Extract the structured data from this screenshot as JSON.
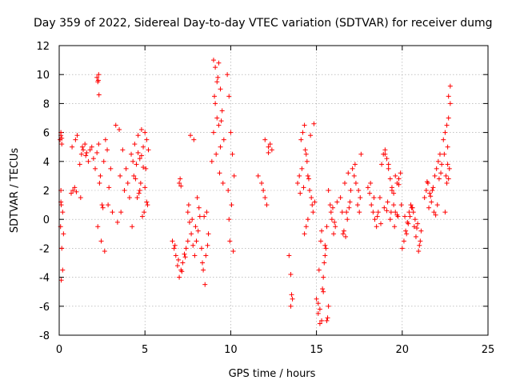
{
  "chart_data": {
    "type": "scatter",
    "title": "Day 359 of 2022, Sidereal Day-to-day VTEC variation (SDTVAR) for receiver dumg",
    "xlabel": "GPS time / hours",
    "ylabel": "SDTVAR / TECUs",
    "xlim": [
      0,
      25
    ],
    "ylim": [
      -8,
      12
    ],
    "xticks": [
      0,
      5,
      10,
      15,
      20,
      25
    ],
    "yticks": [
      -8,
      -6,
      -4,
      -2,
      0,
      2,
      4,
      6,
      8,
      10,
      12
    ],
    "xtick_labels": [
      "0",
      "5",
      "10",
      "15",
      "20",
      "25"
    ],
    "ytick_labels": [
      "-8",
      "-6",
      "-4",
      "-2",
      "0",
      "2",
      "4",
      "6",
      "8",
      "10",
      "12"
    ],
    "grid": true,
    "marker": "+",
    "color": "#ff0000",
    "series": [
      {
        "name": "SDTVAR",
        "x": [
          0.05,
          0.1,
          0.15,
          0.2,
          0.25,
          0.1,
          0.15,
          0.2,
          0.1,
          0.12,
          0.1,
          0.08,
          0.12,
          0.15,
          0.7,
          0.8,
          0.9,
          1.0,
          0.75,
          0.95,
          1.05,
          1.3,
          1.4,
          1.5,
          1.6,
          1.7,
          1.35,
          1.55,
          1.2,
          1.25,
          1.8,
          1.9,
          2.0,
          2.1,
          2.2,
          2.3,
          2.4,
          2.5,
          2.6,
          2.7,
          2.8,
          2.9,
          3.0,
          3.1,
          2.25,
          2.45,
          2.65,
          2.85,
          2.35,
          2.55,
          2.2,
          2.3,
          2.28,
          2.32,
          2.25,
          3.3,
          3.5,
          3.7,
          3.9,
          4.0,
          4.1,
          3.4,
          3.6,
          3.8,
          3.55,
          4.2,
          4.3,
          4.4,
          4.5,
          4.6,
          4.7,
          4.8,
          4.9,
          5.0,
          5.1,
          5.2,
          4.35,
          4.55,
          4.75,
          4.95,
          5.15,
          4.45,
          4.65,
          4.85,
          5.05,
          4.25,
          4.7,
          4.9,
          5.0,
          5.1,
          4.6,
          4.8,
          6.6,
          6.7,
          6.8,
          6.9,
          7.0,
          7.1,
          7.2,
          7.3,
          7.4,
          7.5,
          6.75,
          6.95,
          7.15,
          7.35,
          7.0,
          7.05,
          7.1,
          7.5,
          7.6,
          7.7,
          7.8,
          7.9,
          8.0,
          8.1,
          8.2,
          7.65,
          7.85,
          8.05,
          7.55,
          7.75,
          7.95,
          8.15,
          8.3,
          8.4,
          8.5,
          8.6,
          8.7,
          8.35,
          8.55,
          8.45,
          8.65,
          8.9,
          9.0,
          9.1,
          9.2,
          9.3,
          9.4,
          9.5,
          9.6,
          9.0,
          9.1,
          9.2,
          9.3,
          9.4,
          9.05,
          9.25,
          9.45,
          9.15,
          9.35,
          9.55,
          9.8,
          9.9,
          10.0,
          10.1,
          10.2,
          9.85,
          10.05,
          9.95,
          10.15,
          9.9,
          11.6,
          11.8,
          11.9,
          12.0,
          12.1,
          12.2,
          12.3,
          12.4,
          12.0,
          12.2,
          13.4,
          13.5,
          13.6,
          13.5,
          13.55,
          13.9,
          14.0,
          14.1,
          14.2,
          14.3,
          14.4,
          14.5,
          14.6,
          14.7,
          14.8,
          14.9,
          14.05,
          14.25,
          14.45,
          14.65,
          14.85,
          14.15,
          14.35,
          14.55,
          14.75,
          14.3,
          14.5,
          14.4,
          15.0,
          15.1,
          15.2,
          15.3,
          15.4,
          15.5,
          15.6,
          15.7,
          15.15,
          15.35,
          15.55,
          15.25,
          15.45,
          15.65,
          15.2,
          15.4,
          15.3,
          15.5,
          15.1,
          15.6,
          15.7,
          15.8,
          15.9,
          16.0,
          16.1,
          16.2,
          15.85,
          16.05,
          15.95,
          16.4,
          16.5,
          16.6,
          16.7,
          16.8,
          16.9,
          17.0,
          16.55,
          16.75,
          16.95,
          16.65,
          16.85,
          17.1,
          17.2,
          17.3,
          17.4,
          17.5,
          17.6,
          17.25,
          17.45,
          17.55,
          18.0,
          18.1,
          18.2,
          18.3,
          18.4,
          18.5,
          18.6,
          18.7,
          18.8,
          18.9,
          19.0,
          19.1,
          19.2,
          19.3,
          19.4,
          19.5,
          19.6,
          19.7,
          19.8,
          19.9,
          18.15,
          18.35,
          18.55,
          18.75,
          18.95,
          19.15,
          19.35,
          19.55,
          19.75,
          19.95,
          19.0,
          19.2,
          19.4,
          19.6,
          19.8,
          19.1,
          19.3,
          19.5,
          19.7,
          20.0,
          20.1,
          20.2,
          20.3,
          20.4,
          20.5,
          20.6,
          20.7,
          20.8,
          20.9,
          21.0,
          21.1,
          20.25,
          20.45,
          20.65,
          20.85,
          21.05,
          20.15,
          20.35,
          20.55,
          20.75,
          20.95,
          21.3,
          21.4,
          21.5,
          21.6,
          21.7,
          21.8,
          21.9,
          22.0,
          22.1,
          22.2,
          22.3,
          21.45,
          21.65,
          21.85,
          22.05,
          22.25,
          21.55,
          21.75,
          21.95,
          22.15,
          22.4,
          22.5,
          22.6,
          22.7,
          22.8,
          22.45,
          22.65,
          22.55,
          22.75,
          22.6,
          22.7,
          22.8,
          22.5,
          22.65,
          22.7
        ],
        "y": [
          5.5,
          5.8,
          5.2,
          0.5,
          -1.0,
          1.2,
          -2.0,
          -3.5,
          6.0,
          -4.2,
          2.0,
          -0.5,
          1.0,
          5.6,
          1.8,
          2.0,
          2.2,
          1.9,
          5.0,
          5.5,
          5.8,
          4.5,
          4.8,
          5.2,
          4.6,
          4.0,
          5.0,
          4.4,
          3.8,
          1.5,
          4.8,
          5.0,
          4.2,
          3.5,
          4.6,
          5.2,
          3.0,
          1.0,
          4.0,
          5.5,
          4.8,
          2.2,
          3.5,
          0.5,
          -0.5,
          -1.5,
          -2.2,
          1.0,
          2.5,
          0.8,
          9.8,
          10.0,
          9.6,
          8.6,
          9.5,
          6.5,
          6.2,
          4.8,
          3.5,
          2.5,
          1.5,
          -0.2,
          0.5,
          2.0,
          3.0,
          4.5,
          4.0,
          5.2,
          3.8,
          4.6,
          2.0,
          6.2,
          5.0,
          6.0,
          5.5,
          4.8,
          3.0,
          1.5,
          2.5,
          0.5,
          1.0,
          2.8,
          1.8,
          0.2,
          3.5,
          -0.5,
          4.2,
          3.6,
          2.2,
          1.2,
          5.8,
          4.4,
          -1.5,
          -2.0,
          -2.5,
          -3.2,
          -4.0,
          -3.5,
          -3.0,
          -2.4,
          -2.0,
          -1.5,
          -1.8,
          -2.8,
          -3.6,
          -2.6,
          2.5,
          2.8,
          2.3,
          0.5,
          -0.2,
          -1.0,
          -1.8,
          -2.5,
          -1.5,
          -0.8,
          0.2,
          5.8,
          5.5,
          1.5,
          1.0,
          0.0,
          -0.5,
          0.8,
          -2.0,
          -3.5,
          -4.5,
          0.5,
          -1.0,
          -3.0,
          -2.5,
          0.2,
          -1.8,
          4.0,
          6.0,
          8.0,
          9.5,
          10.8,
          9.0,
          7.5,
          5.5,
          11.0,
          10.5,
          7.0,
          6.5,
          5.0,
          8.5,
          9.8,
          6.8,
          4.5,
          3.2,
          2.5,
          10.0,
          8.5,
          6.0,
          4.5,
          3.0,
          2.0,
          1.0,
          -1.5,
          -2.2,
          0.0,
          3.0,
          2.5,
          2.0,
          1.5,
          1.0,
          5.0,
          5.2,
          4.8,
          5.5,
          4.6,
          -2.5,
          -3.8,
          -5.5,
          -6.0,
          -5.2,
          2.5,
          3.0,
          5.5,
          6.0,
          6.5,
          4.5,
          3.0,
          2.0,
          1.5,
          0.5,
          1.2,
          1.8,
          2.2,
          4.0,
          5.8,
          6.6,
          3.5,
          4.8,
          2.8,
          1.0,
          -1.0,
          0.0,
          -0.5,
          -5.5,
          -6.5,
          -7.2,
          -7.0,
          -5.0,
          -2.5,
          -0.5,
          -6.0,
          -3.5,
          -4.8,
          -2.0,
          -1.5,
          -3.0,
          -6.8,
          -6.2,
          -4.0,
          -0.8,
          -1.8,
          -5.8,
          -7.0,
          2.0,
          1.0,
          0.0,
          -1.0,
          -0.5,
          1.2,
          0.5,
          -0.2,
          0.8,
          1.5,
          0.5,
          -0.8,
          -1.2,
          0.0,
          0.8,
          2.0,
          -1.0,
          0.5,
          1.2,
          2.5,
          3.2,
          3.5,
          3.0,
          2.5,
          1.0,
          0.5,
          4.5,
          3.8,
          2.0,
          1.5,
          2.2,
          1.8,
          1.0,
          0.5,
          0.0,
          -0.5,
          0.5,
          1.5,
          3.8,
          4.5,
          4.8,
          4.2,
          3.5,
          2.8,
          2.0,
          1.0,
          0.5,
          2.5,
          2.8,
          3.2,
          2.5,
          1.5,
          0.2,
          -0.3,
          0.8,
          1.2,
          0.5,
          -0.5,
          0.2,
          1.0,
          4.5,
          3.8,
          2.2,
          3.0,
          2.4,
          0.6,
          0.0,
          1.8,
          0.3,
          -2.0,
          -1.5,
          -0.8,
          -0.2,
          0.5,
          1.0,
          0.8,
          -0.5,
          -1.2,
          -0.3,
          -1.8,
          -0.8,
          -1.0,
          0.2,
          0.5,
          -0.6,
          -1.5,
          0.2,
          -0.3,
          0.8,
          0.0,
          -2.2,
          1.5,
          2.0,
          2.5,
          1.8,
          1.2,
          2.2,
          3.0,
          3.5,
          4.0,
          4.5,
          3.8,
          2.6,
          1.6,
          0.5,
          1.0,
          3.2,
          0.8,
          2.0,
          0.3,
          2.8,
          5.5,
          6.0,
          6.5,
          7.0,
          8.0,
          4.5,
          5.0,
          3.0,
          3.5,
          2.5,
          8.5,
          9.2,
          0.5,
          3.8,
          2.8
        ]
      }
    ]
  }
}
